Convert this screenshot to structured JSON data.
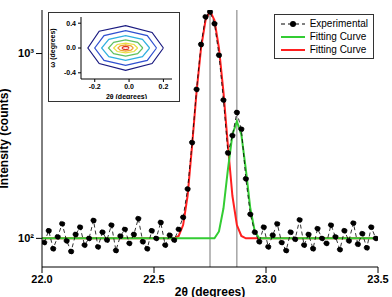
{
  "chart_data": [
    {
      "type": "line",
      "x_label": "2θ (degrees)",
      "y_label": "Intensity (counts)",
      "log": "y",
      "xlim": [
        22.0,
        23.5
      ],
      "xticks": [
        {
          "value": 22,
          "label": "22.0"
        },
        {
          "value": 22.5,
          "label": "22.5"
        },
        {
          "value": 23,
          "label": "23.0"
        },
        {
          "value": 23.5,
          "label": "23.5"
        }
      ],
      "ylim": [
        70,
        1720
      ],
      "yticks": [
        {
          "value": 100,
          "label": "10²"
        },
        {
          "value": 1000,
          "label": "10³"
        }
      ],
      "legend": "upper right",
      "peak_positions": [
        22.75,
        22.87
      ],
      "series": [
        {
          "name": "Fitting Curve",
          "type": "line",
          "color": "#ff1f1f",
          "line_style": "solid",
          "x": [
            22.0,
            22.59,
            22.61,
            22.63,
            22.65,
            22.67,
            22.69,
            22.71,
            22.73,
            22.75,
            22.77,
            22.79,
            22.81,
            22.83,
            22.85,
            22.87,
            22.89,
            22.91,
            23.5
          ],
          "values": [
            100,
            100,
            103,
            118,
            170,
            317,
            620,
            1071,
            1511,
            1700,
            1511,
            1071,
            620,
            317,
            170,
            118,
            103,
            100,
            100
          ]
        },
        {
          "name": "Fitting Curve",
          "type": "line",
          "color": "#33cc33",
          "line_style": "solid",
          "x": [
            22.0,
            22.77,
            22.79,
            22.81,
            22.83,
            22.85,
            22.87,
            22.89,
            22.91,
            22.93,
            22.95,
            22.97,
            23.5
          ],
          "values": [
            100,
            100,
            109,
            145,
            236,
            364,
            430,
            364,
            236,
            145,
            109,
            100,
            100
          ]
        },
        {
          "name": "Experimental",
          "type": "line",
          "color": "#000000",
          "marker": "circle",
          "line_style": "dashed",
          "x": [
            22.01,
            22.03,
            22.05,
            22.07,
            22.09,
            22.11,
            22.13,
            22.15,
            22.17,
            22.19,
            22.21,
            22.23,
            22.25,
            22.27,
            22.29,
            22.31,
            22.33,
            22.35,
            22.37,
            22.39,
            22.41,
            22.43,
            22.45,
            22.47,
            22.49,
            22.51,
            22.53,
            22.55,
            22.57,
            22.59,
            22.61,
            22.63,
            22.65,
            22.67,
            22.69,
            22.71,
            22.73,
            22.75,
            22.77,
            22.79,
            22.81,
            22.83,
            22.85,
            22.87,
            22.89,
            22.91,
            22.93,
            22.95,
            22.97,
            22.99,
            23.01,
            23.03,
            23.05,
            23.07,
            23.09,
            23.11,
            23.13,
            23.15,
            23.17,
            23.19,
            23.21,
            23.23,
            23.25,
            23.27,
            23.29,
            23.31,
            23.33,
            23.35,
            23.37,
            23.39,
            23.41,
            23.43,
            23.45,
            23.47,
            23.49
          ],
          "values": [
            95,
            110,
            88,
            102,
            120,
            97,
            85,
            105,
            115,
            92,
            100,
            125,
            90,
            108,
            98,
            118,
            86,
            103,
            112,
            94,
            105,
            128,
            96,
            88,
            110,
            100,
            122,
            92,
            104,
            98,
            112,
            130,
            185,
            330,
            640,
            1120,
            1580,
            1680,
            1450,
            980,
            560,
            290,
            360,
            480,
            390,
            210,
            135,
            108,
            96,
            115,
            90,
            104,
            120,
            95,
            86,
            108,
            99,
            126,
            92,
            105,
            88,
            113,
            100,
            94,
            118,
            102,
            87,
            110,
            97,
            121,
            93,
            106,
            89,
            115,
            100
          ]
        }
      ]
    },
    {
      "type": "contour",
      "x_label": "2θ (degrees)",
      "y_label": "ω (degrees)",
      "xlim": [
        -0.28,
        0.25
      ],
      "xticks": [
        -0.2,
        {
          "value": 0,
          "label": "0.0"
        },
        0.2
      ],
      "ylim": [
        -0.5,
        0.5
      ],
      "yticks": [
        -0.4,
        {
          "value": 0,
          "label": "0.0"
        },
        0.4
      ],
      "contours": [
        {
          "color": "#1a1a80",
          "x": [
            0.2,
            0.134,
            -0.02,
            -0.174,
            -0.24,
            -0.174,
            -0.02,
            0.134,
            0.2
          ],
          "y": [
            0,
            0.25,
            0.36,
            0.27,
            0,
            -0.25,
            -0.36,
            -0.25,
            0
          ]
        },
        {
          "color": "#3050d0",
          "x": [
            0.16,
            0.106,
            -0.02,
            -0.146,
            -0.2,
            -0.146,
            -0.02,
            0.106,
            0.16
          ],
          "y": [
            0,
            0.2,
            0.28,
            0.2,
            0,
            -0.2,
            -0.28,
            -0.2,
            0
          ]
        },
        {
          "color": "#30b0e0",
          "x": [
            0.12,
            0.078,
            -0.02,
            -0.118,
            -0.16,
            -0.118,
            -0.02,
            0.078,
            0.12
          ],
          "y": [
            0,
            0.14,
            0.2,
            0.14,
            0,
            -0.14,
            -0.2,
            -0.14,
            0
          ]
        },
        {
          "color": "#60c060",
          "x": [
            0.08,
            0.05,
            -0.02,
            -0.09,
            -0.12,
            -0.09,
            -0.02,
            0.05,
            0.08
          ],
          "y": [
            0,
            0.09,
            0.13,
            0.09,
            0,
            -0.09,
            -0.13,
            -0.09,
            0
          ]
        },
        {
          "color": "#e8e040",
          "x": [
            0.05,
            0.029,
            -0.02,
            -0.069,
            -0.09,
            -0.069,
            -0.02,
            0.029,
            0.05
          ],
          "y": [
            0,
            0.056,
            0.08,
            0.056,
            0,
            -0.056,
            -0.08,
            -0.056,
            0
          ]
        },
        {
          "color": "#f0a030",
          "x": [
            0.025,
            0.0115,
            -0.02,
            -0.0515,
            -0.065,
            -0.0515,
            -0.02,
            0.0115,
            0.025
          ],
          "y": [
            0,
            0.035,
            0.05,
            0.035,
            0,
            -0.035,
            -0.05,
            -0.035,
            0
          ]
        },
        {
          "color": "#e03020",
          "x": [
            0,
            -0.006,
            -0.02,
            -0.034,
            -0.04,
            -0.034,
            -0.02,
            -0.006,
            0
          ],
          "y": [
            0,
            0.0175,
            0.025,
            0.0175,
            0,
            -0.0175,
            -0.025,
            -0.0175,
            0
          ]
        }
      ]
    }
  ]
}
